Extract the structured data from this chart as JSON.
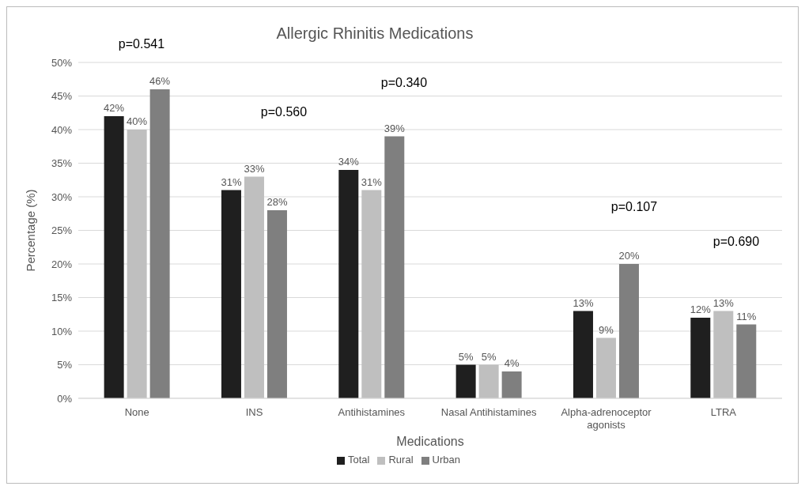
{
  "chart_data": {
    "type": "bar",
    "title": "Allergic Rhinitis Medications",
    "xlabel": "Medications",
    "ylabel": "Percentage (%)",
    "categories": [
      "None",
      "INS",
      "Antihistamines",
      "Nasal Antihistamines",
      "Alpha-adrenoceptor agonists",
      "LTRA"
    ],
    "series": [
      {
        "name": "Total",
        "color": "#1f1f1f",
        "values": [
          42,
          31,
          34,
          5,
          13,
          12
        ],
        "value_labels": [
          "42%",
          "31%",
          "34%",
          "5%",
          "13%",
          "12%"
        ]
      },
      {
        "name": "Rural",
        "color": "#bfbfbf",
        "values": [
          40,
          33,
          31,
          5,
          9,
          13
        ],
        "value_labels": [
          "40%",
          "33%",
          "31%",
          "5%",
          "9%",
          "13%"
        ]
      },
      {
        "name": "Urban",
        "color": "#7f7f7f",
        "values": [
          46,
          28,
          39,
          4,
          20,
          11
        ],
        "value_labels": [
          "46%",
          "28%",
          "39%",
          "4%",
          "20%",
          "11%"
        ]
      }
    ],
    "ylim": [
      0,
      50
    ],
    "yticks": [
      {
        "value": 0,
        "label": "0%"
      },
      {
        "value": 5,
        "label": "5%"
      },
      {
        "value": 10,
        "label": "10%"
      },
      {
        "value": 15,
        "label": "15%"
      },
      {
        "value": 20,
        "label": "20%"
      },
      {
        "value": 25,
        "label": "25%"
      },
      {
        "value": 30,
        "label": "30%"
      },
      {
        "value": 35,
        "label": "35%"
      },
      {
        "value": 40,
        "label": "40%"
      },
      {
        "value": 45,
        "label": "45%"
      },
      {
        "value": 50,
        "label": "50%"
      }
    ],
    "annotations": [
      "p=0.541",
      "p=0.560",
      "p=0.340",
      "p=0.107",
      "p=0.690"
    ],
    "grid": "y",
    "legend": "bottom"
  }
}
